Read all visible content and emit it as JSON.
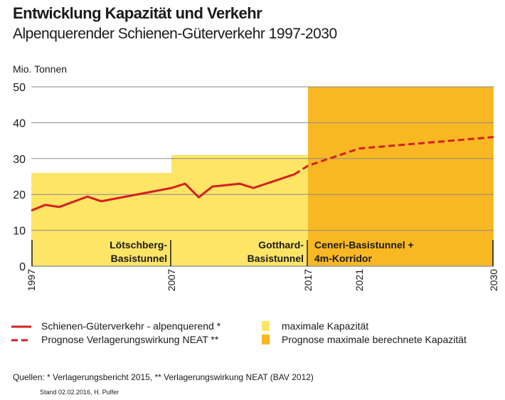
{
  "chart_data": {
    "type": "line",
    "title": "Entwicklung Kapazität und Verkehr",
    "subtitle": "Alpenquerender Schienen-Güterverkehr 1997-2030",
    "ylabel": "Mio. Tonnen",
    "ylim": [
      0,
      50
    ],
    "yticks": [
      "0",
      "10",
      "20",
      "30",
      "40",
      "50"
    ],
    "xticks": [
      "1997",
      "2007",
      "2017",
      "2021",
      "2030"
    ],
    "grid": true,
    "legend_placement": "bottom",
    "series": [
      {
        "name": "Schienen-Güterverkehr - alpenquerend *",
        "style": "solid",
        "color": "#D42020",
        "x": [
          1997,
          1998,
          1999,
          2001,
          2002,
          2007,
          2008,
          2009,
          2010,
          2012,
          2013,
          2016
        ],
        "y": [
          15.5,
          17.1,
          16.5,
          19.4,
          18.1,
          21.8,
          23.0,
          19.2,
          22.2,
          23.0,
          21.8,
          25.6
        ]
      },
      {
        "name": "Prognose Verlagerungswirkung NEAT **",
        "style": "dashed",
        "color": "#D42020",
        "x": [
          2016,
          2017,
          2021,
          2030
        ],
        "y": [
          25.6,
          28,
          32.8,
          36
        ]
      }
    ],
    "areas": [
      {
        "name": "maximale Kapazität",
        "color": "#FFE566",
        "segments": [
          {
            "from": 1997,
            "to": 2007,
            "value": 26
          },
          {
            "from": 2007,
            "to": 2017,
            "value": 31
          }
        ]
      },
      {
        "name": "Prognose maximale berechnete Kapazität",
        "color": "#F8B823",
        "segments": [
          {
            "from": 2017,
            "to": 2030,
            "value": 50
          }
        ]
      }
    ],
    "annotations": [
      {
        "lines": [
          "Lötschberg-",
          "Basistunnel"
        ],
        "from": 1997,
        "to": 2007
      },
      {
        "lines": [
          "Gotthard-",
          "Basistunnel"
        ],
        "from": 2007,
        "to": 2017
      },
      {
        "lines": [
          "Ceneri-Basistunnel +",
          "4m-Korridor"
        ],
        "from": 2017,
        "to": 2030
      }
    ]
  },
  "sources": "Quellen: * Verlagerungsbericht 2015, ** Verlagerungswirkung NEAT (BAV 2012)",
  "stand": "Stand 02.02.2016, H. Pulfer"
}
